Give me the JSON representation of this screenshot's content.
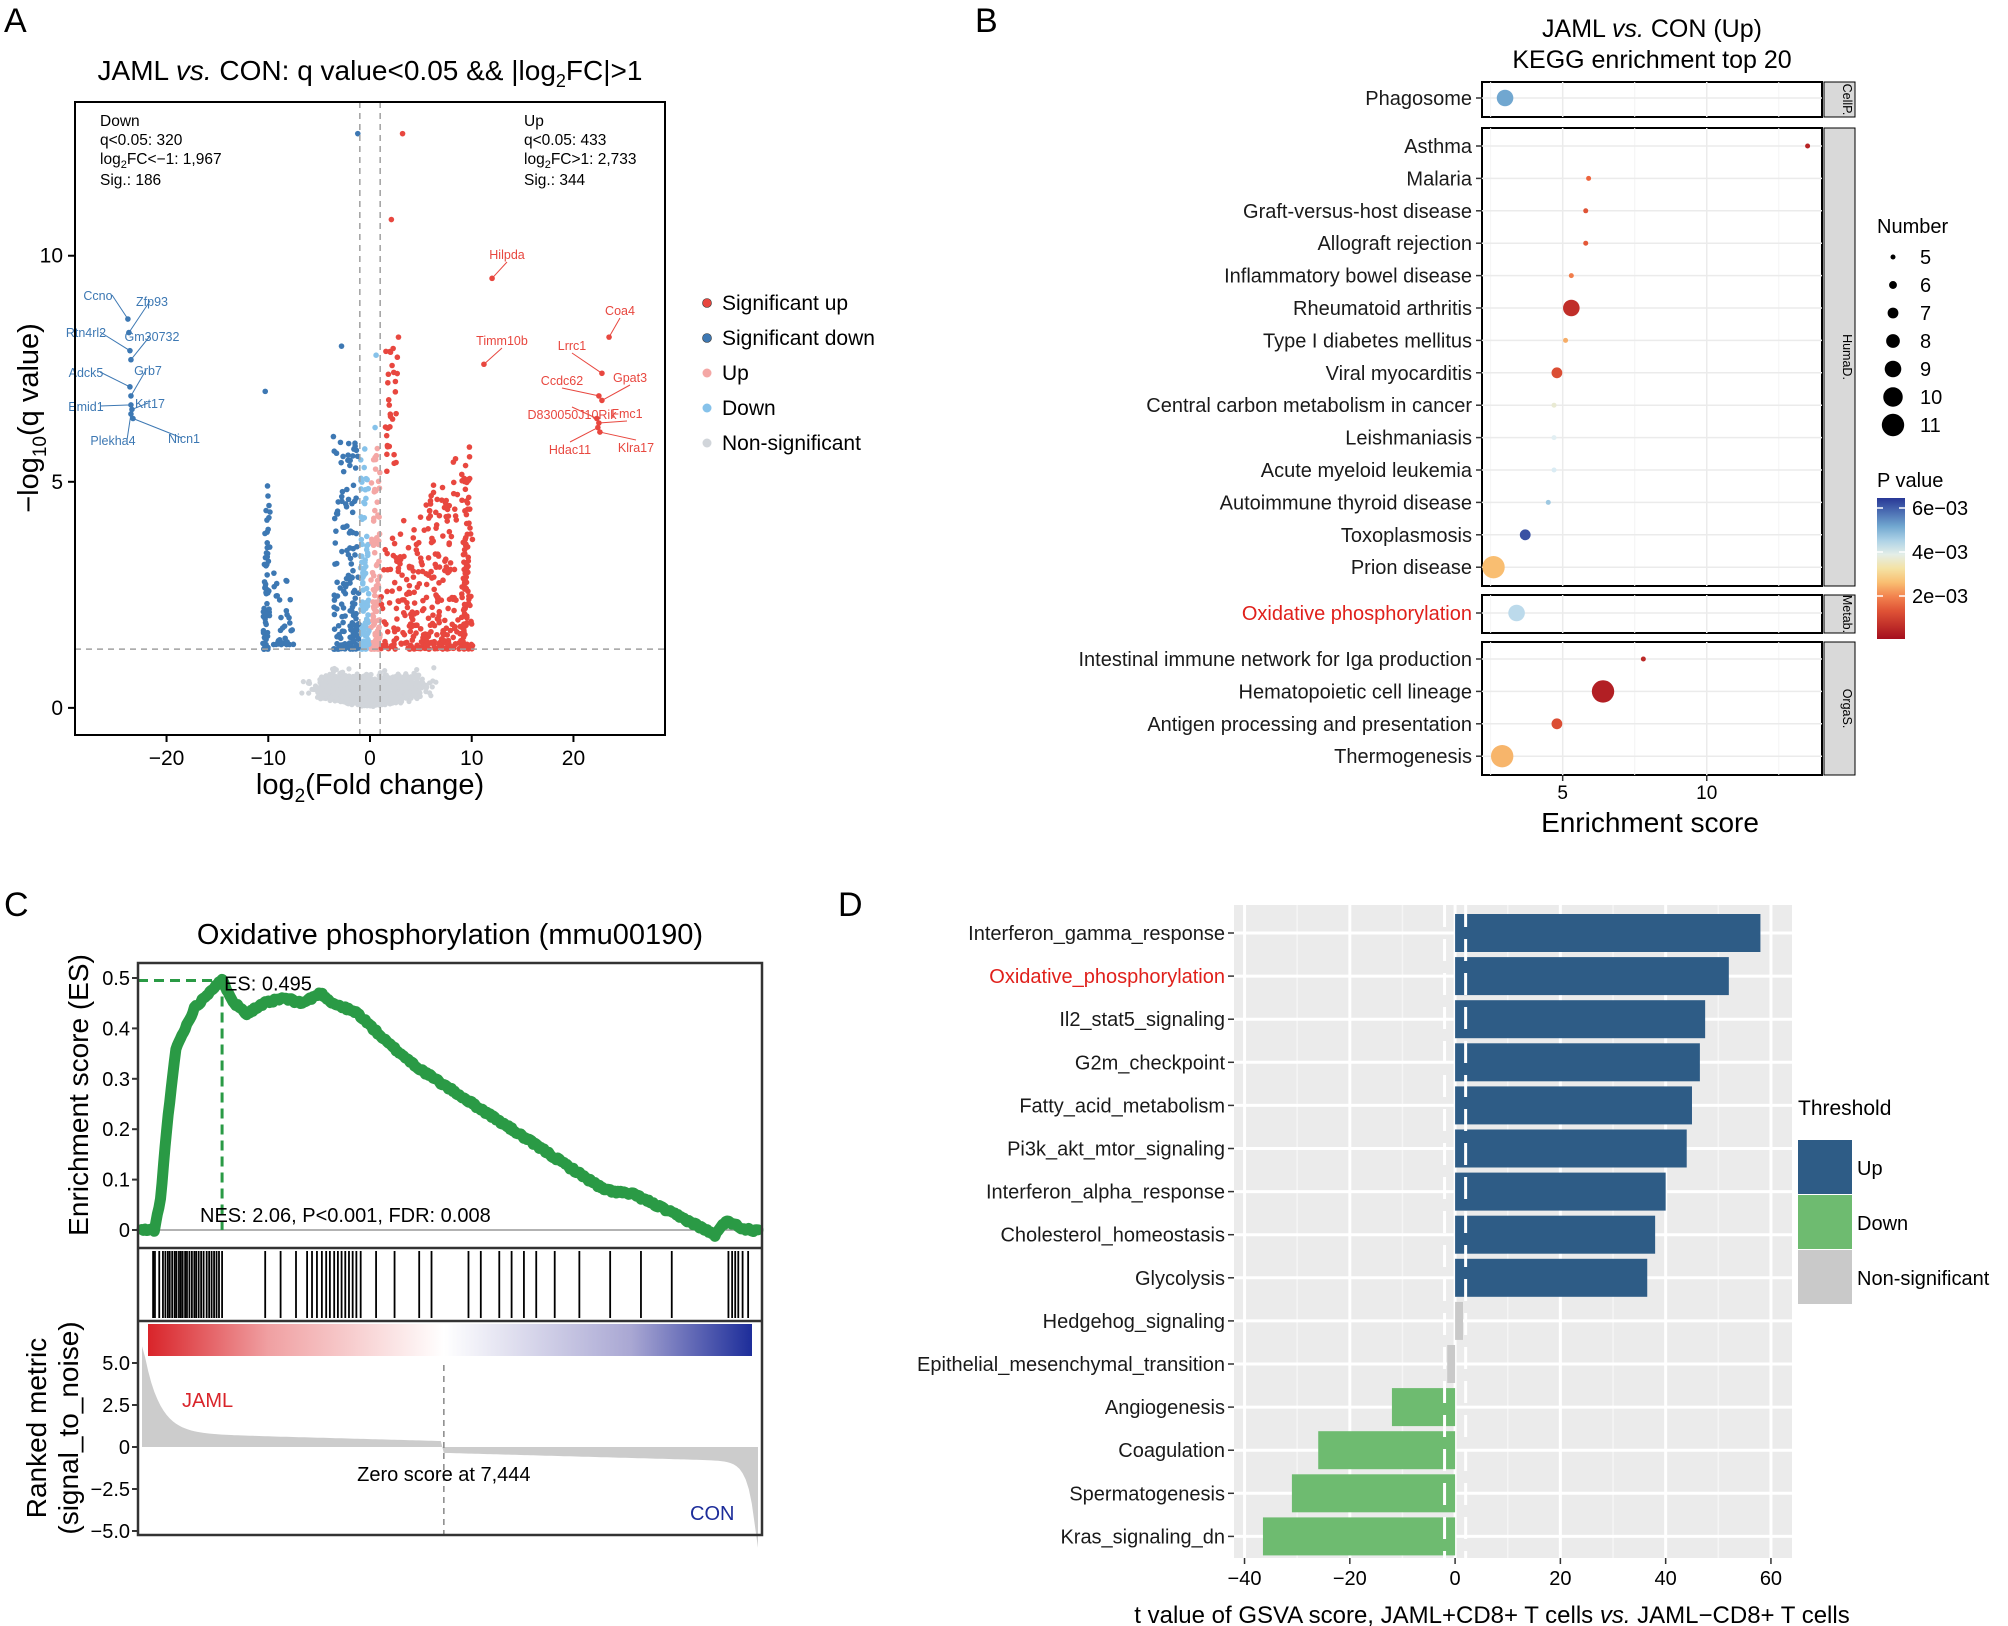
{
  "chart_data": [
    {
      "panel": "A",
      "type": "scatter",
      "title": "JAML vs. CON: q value<0.05 && |log2FC|>1",
      "xlabel": "log2(Fold change)",
      "ylabel": "−log10(q value)",
      "xlim": [
        -29,
        29
      ],
      "ylim": [
        -0.6,
        13.4
      ],
      "xticks": [
        -20,
        -10,
        0,
        10,
        20
      ],
      "yticks": [
        0,
        5,
        10
      ],
      "thresholds": {
        "fc": 1,
        "sig_y": 1.3
      },
      "down_stats": [
        "Down",
        "q<0.05: 320",
        "log2FC<−1: 1,967",
        "Sig.: 186"
      ],
      "up_stats": [
        "Up",
        "q<0.05: 433",
        "log2FC>1: 2,733",
        "Sig.: 344"
      ],
      "legend": [
        "Significant up",
        "Significant down",
        "Up",
        "Down",
        "Non-significant"
      ],
      "colors": {
        "sig_up": "#e8473f",
        "sig_down": "#3d78b3",
        "up": "#f4a7a5",
        "down": "#86c2ea",
        "ns": "#d1d5da"
      },
      "labels_down": [
        {
          "gene": "Ccno",
          "x": -23.8,
          "y": 8.6
        },
        {
          "gene": "Zfp93",
          "x": -23.7,
          "y": 8.3
        },
        {
          "gene": "Rtn4rl2",
          "x": -23.6,
          "y": 7.9
        },
        {
          "gene": "Gm30732",
          "x": -23.5,
          "y": 7.7
        },
        {
          "gene": "Adck5",
          "x": -23.6,
          "y": 7.1
        },
        {
          "gene": "Grb7",
          "x": -23.5,
          "y": 6.9
        },
        {
          "gene": "Emid1",
          "x": -23.5,
          "y": 6.7
        },
        {
          "gene": "Krt17",
          "x": -23.4,
          "y": 6.6
        },
        {
          "gene": "Plekha4",
          "x": -23.5,
          "y": 6.5
        },
        {
          "gene": "Nicn1",
          "x": -23.3,
          "y": 6.4
        }
      ],
      "labels_up": [
        {
          "gene": "Hilpda",
          "x": 12.0,
          "y": 9.5
        },
        {
          "gene": "Coa4",
          "x": 23.5,
          "y": 8.2
        },
        {
          "gene": "Timm10b",
          "x": 11.2,
          "y": 7.6
        },
        {
          "gene": "Lrrc1",
          "x": 22.8,
          "y": 7.4
        },
        {
          "gene": "Ccdc62",
          "x": 22.5,
          "y": 6.9
        },
        {
          "gene": "Gpat3",
          "x": 22.8,
          "y": 6.8
        },
        {
          "gene": "D830050J10Rik",
          "x": 22.3,
          "y": 6.4
        },
        {
          "gene": "Fmc1",
          "x": 22.5,
          "y": 6.3
        },
        {
          "gene": "Hdac11",
          "x": 22.4,
          "y": 6.2
        },
        {
          "gene": "Klra17",
          "x": 22.6,
          "y": 6.1
        }
      ],
      "outliers": [
        {
          "x": -1.2,
          "y": 12.7,
          "group": "sig_down"
        },
        {
          "x": 3.2,
          "y": 12.7,
          "group": "sig_up"
        },
        {
          "x": 2.1,
          "y": 10.8,
          "group": "sig_up"
        },
        {
          "x": -2.8,
          "y": 8.0,
          "group": "sig_down"
        },
        {
          "x": 2.8,
          "y": 8.2,
          "group": "sig_up"
        },
        {
          "x": -10.3,
          "y": 7.0,
          "group": "sig_down"
        },
        {
          "x": 0.6,
          "y": 7.8,
          "group": "down"
        },
        {
          "x": 0.5,
          "y": 6.2,
          "group": "down"
        }
      ]
    },
    {
      "panel": "B",
      "type": "scatter",
      "title": [
        "JAML vs. CON (Up)",
        "KEGG enrichment top 20"
      ],
      "xlabel": "Enrichment score",
      "xlim": [
        2.2,
        14.0
      ],
      "xticks": [
        5,
        10
      ],
      "size_legend_title": "Number",
      "size_legend": [
        5,
        6,
        7,
        8,
        9,
        10,
        11
      ],
      "color_legend_title": "P value",
      "color_legend_ticks": [
        "6e−03",
        "4e−03",
        "2e−03"
      ],
      "p_range": [
        0.0,
        0.0065
      ],
      "groups": [
        {
          "strip": "CellP.",
          "items": [
            {
              "term": "Phagosome",
              "score": 3.0,
              "n": 9,
              "p": 0.0052
            }
          ]
        },
        {
          "strip": "HumaD.",
          "items": [
            {
              "term": "Asthma",
              "score": 13.5,
              "n": 5,
              "p": 0.0004
            },
            {
              "term": "Malaria",
              "score": 5.9,
              "n": 5,
              "p": 0.0016
            },
            {
              "term": "Graft-versus-host disease",
              "score": 5.8,
              "n": 5,
              "p": 0.0013
            },
            {
              "term": "Allograft rejection",
              "score": 5.8,
              "n": 5,
              "p": 0.0014
            },
            {
              "term": "Inflammatory bowel disease",
              "score": 5.3,
              "n": 5,
              "p": 0.0019
            },
            {
              "term": "Rheumatoid arthritis",
              "score": 5.3,
              "n": 9,
              "p": 0.0006
            },
            {
              "term": "Type I diabetes mellitus",
              "score": 5.1,
              "n": 5,
              "p": 0.0024
            },
            {
              "term": "Viral myocarditis",
              "score": 4.8,
              "n": 7,
              "p": 0.0012
            },
            {
              "term": "Central carbon metabolism in cancer",
              "score": 4.7,
              "n": 5,
              "p": 0.0037
            },
            {
              "term": "Leishmaniasis",
              "score": 4.7,
              "n": 5,
              "p": 0.004
            },
            {
              "term": "Acute myeloid leukemia",
              "score": 4.7,
              "n": 5,
              "p": 0.0041
            },
            {
              "term": "Autoimmune thyroid disease",
              "score": 4.5,
              "n": 5,
              "p": 0.0047
            },
            {
              "term": "Toxoplasmosis",
              "score": 3.7,
              "n": 7,
              "p": 0.0062
            },
            {
              "term": "Prion disease",
              "score": 2.6,
              "n": 11,
              "p": 0.0026
            }
          ]
        },
        {
          "strip": "Metab.",
          "highlight": true,
          "items": [
            {
              "term": "Oxidative phosphorylation",
              "score": 3.4,
              "n": 9,
              "p": 0.0044
            }
          ]
        },
        {
          "strip": "OrgaS.",
          "items": [
            {
              "term": "Intestinal immune network for Iga production",
              "score": 7.8,
              "n": 5,
              "p": 0.0005
            },
            {
              "term": "Hematopoietic cell lineage",
              "score": 6.4,
              "n": 11,
              "p": 0.0003
            },
            {
              "term": "Antigen processing and presentation",
              "score": 4.8,
              "n": 7,
              "p": 0.0012
            },
            {
              "term": "Thermogenesis",
              "score": 2.9,
              "n": 11,
              "p": 0.0025
            }
          ]
        }
      ]
    },
    {
      "panel": "C",
      "type": "line",
      "title": "Oxidative phosphorylation (mmu00190)",
      "ylabel": "Enrichment score (ES)",
      "ylabel2": [
        "Ranked metric",
        "(signal_to_noise)"
      ],
      "ylim": [
        -0.02,
        0.52
      ],
      "yticks": [
        0,
        0.1,
        0.2,
        0.3,
        0.4,
        0.5
      ],
      "metric_yticks": [
        5.0,
        2.5,
        0,
        -2.5,
        -5.0
      ],
      "es_label": "ES: 0.495",
      "stats_label": "NES: 2.06, P<0.001, FDR: 0.008",
      "zero_label": "Zero score at 7,444",
      "left_group": "JAML",
      "right_group": "CON",
      "peak_rank": 0.13,
      "zero_rank": 0.49,
      "rank": [
        0,
        0.02,
        0.03,
        0.04,
        0.055,
        0.07,
        0.085,
        0.1,
        0.115,
        0.13,
        0.15,
        0.17,
        0.2,
        0.23,
        0.26,
        0.29,
        0.31,
        0.35,
        0.4,
        0.45,
        0.5,
        0.55,
        0.6,
        0.65,
        0.7,
        0.75,
        0.8,
        0.85,
        0.9,
        0.93,
        0.95,
        0.97,
        0.99,
        1.0
      ],
      "es": [
        0,
        0,
        0.06,
        0.2,
        0.36,
        0.4,
        0.44,
        0.46,
        0.48,
        0.495,
        0.45,
        0.43,
        0.45,
        0.46,
        0.45,
        0.47,
        0.45,
        0.43,
        0.37,
        0.32,
        0.28,
        0.24,
        0.2,
        0.16,
        0.12,
        0.08,
        0.07,
        0.04,
        0.01,
        -0.01,
        0.02,
        0.005,
        0.0,
        0
      ],
      "hit_ranks": [
        0.018,
        0.021,
        0.028,
        0.034,
        0.038,
        0.042,
        0.045,
        0.049,
        0.053,
        0.056,
        0.06,
        0.063,
        0.066,
        0.07,
        0.073,
        0.077,
        0.081,
        0.085,
        0.088,
        0.092,
        0.096,
        0.1,
        0.105,
        0.109,
        0.113,
        0.117,
        0.121,
        0.125,
        0.13,
        0.2,
        0.225,
        0.25,
        0.268,
        0.276,
        0.284,
        0.292,
        0.299,
        0.305,
        0.312,
        0.318,
        0.324,
        0.33,
        0.336,
        0.342,
        0.348,
        0.355,
        0.38,
        0.41,
        0.45,
        0.47,
        0.53,
        0.55,
        0.58,
        0.6,
        0.62,
        0.64,
        0.67,
        0.71,
        0.76,
        0.81,
        0.86,
        0.952,
        0.958,
        0.963,
        0.968,
        0.975,
        0.984
      ],
      "colors": {
        "es_line": "#2a9a45",
        "ranked": "#cccccc"
      }
    },
    {
      "panel": "D",
      "type": "bar",
      "orientation": "horizontal",
      "xlabel": "t value of GSVA score, JAML+CD8+ T cells vs. JAML−CD8+ T cells",
      "xlim": [
        -42,
        64
      ],
      "xticks": [
        -40,
        -20,
        0,
        20,
        40,
        60
      ],
      "threshold": 2,
      "legend_title": "Threshold",
      "legend": [
        {
          "name": "Up",
          "color": "#2e5c86"
        },
        {
          "name": "Down",
          "color": "#6ebb70"
        },
        {
          "name": "Non-significant",
          "color": "#c9c9c9"
        }
      ],
      "categories": [
        "Interferon_gamma_response",
        "Oxidative_phosphorylation",
        "Il2_stat5_signaling",
        "G2m_checkpoint",
        "Fatty_acid_metabolism",
        "Pi3k_akt_mtor_signaling",
        "Interferon_alpha_response",
        "Cholesterol_homeostasis",
        "Glycolysis",
        "Hedgehog_signaling",
        "Epithelial_mesenchymal_transition",
        "Angiogenesis",
        "Coagulation",
        "Spermatogenesis",
        "Kras_signaling_dn"
      ],
      "highlight": "Oxidative_phosphorylation",
      "values": [
        58,
        52,
        47.5,
        46.5,
        45,
        44,
        40,
        38,
        36.5,
        1.5,
        -1.5,
        -12,
        -26,
        -31,
        -36.5
      ],
      "groups": [
        "Up",
        "Up",
        "Up",
        "Up",
        "Up",
        "Up",
        "Up",
        "Up",
        "Up",
        "Non-significant",
        "Non-significant",
        "Down",
        "Down",
        "Down",
        "Down"
      ]
    }
  ],
  "panel_letters": [
    "A",
    "B",
    "C",
    "D"
  ]
}
